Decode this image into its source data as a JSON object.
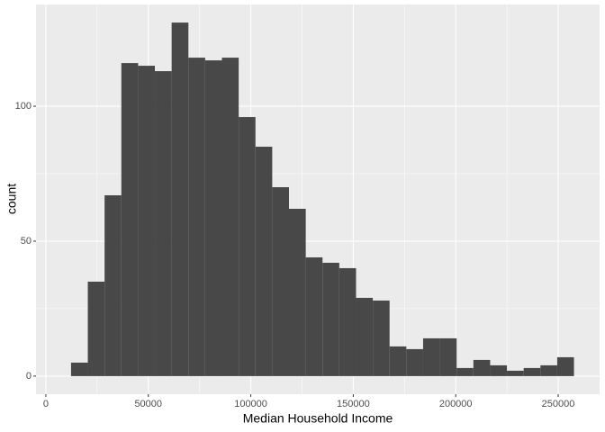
{
  "chart_data": {
    "type": "histogram",
    "xlabel": "Median Household Income",
    "ylabel": "count",
    "bins": [
      12300,
      20480,
      28660,
      36840,
      45020,
      53200,
      61380,
      69560,
      77740,
      85920,
      94100,
      102280,
      110460,
      118640,
      126820,
      135000,
      143180,
      151360,
      159540,
      167720,
      175900,
      184080,
      192260,
      200440,
      208620,
      216800,
      224980,
      233160,
      241340,
      249520,
      257700
    ],
    "values": [
      5,
      35,
      67,
      116,
      115,
      113,
      131,
      118,
      117,
      118,
      96,
      85,
      70,
      62,
      44,
      42,
      40,
      29,
      28,
      11,
      10,
      14,
      14,
      3,
      6,
      4,
      2,
      3,
      4,
      7
    ],
    "color": "#484848",
    "xlim": [
      -4800,
      270200
    ],
    "xticks": [
      0,
      50000,
      100000,
      150000,
      200000,
      250000
    ],
    "ylim": [
      -6.7,
      137.7
    ],
    "yticks": [
      0,
      50,
      100
    ],
    "grid": true
  }
}
